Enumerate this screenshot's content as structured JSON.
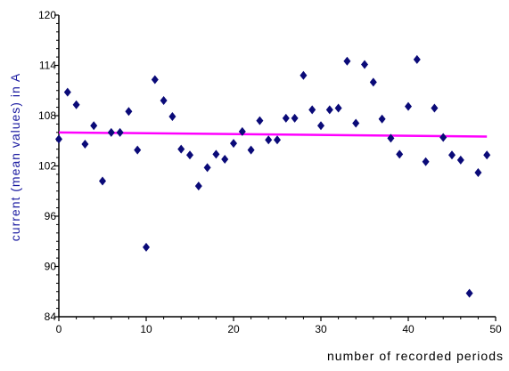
{
  "chart_data": {
    "type": "scatter",
    "title": "",
    "xlabel": "number of recorded periods",
    "ylabel": "current (mean values) in A",
    "xlim": [
      0,
      50
    ],
    "ylim": [
      84,
      120
    ],
    "x_ticks": [
      0,
      10,
      20,
      30,
      40,
      50
    ],
    "y_ticks": [
      84,
      90,
      96,
      102,
      108,
      114,
      120
    ],
    "grid": false,
    "legend": "none",
    "colors": {
      "points": "#0a0a78",
      "trend": "#ff00ff",
      "ylabel": "#1a1aa0"
    },
    "series": [
      {
        "type": "scatter",
        "marker": "diamond",
        "x": [
          0,
          1,
          2,
          3,
          4,
          5,
          6,
          7,
          8,
          9,
          10,
          11,
          12,
          13,
          14,
          15,
          16,
          17,
          18,
          19,
          20,
          21,
          22,
          23,
          24,
          25,
          26,
          27,
          28,
          29,
          30,
          31,
          32,
          33,
          34,
          35,
          36,
          37,
          38,
          39,
          40,
          41,
          42,
          43,
          44,
          45,
          46,
          47,
          48,
          49
        ],
        "y": [
          105.2,
          110.8,
          109.3,
          104.6,
          106.8,
          100.2,
          106.0,
          106.0,
          108.5,
          103.9,
          92.3,
          112.3,
          109.8,
          107.9,
          104.0,
          103.3,
          99.6,
          101.8,
          103.4,
          102.8,
          104.7,
          106.1,
          103.9,
          107.4,
          105.1,
          105.1,
          107.7,
          107.7,
          112.8,
          108.7,
          106.8,
          108.7,
          108.9,
          114.5,
          107.1,
          114.1,
          112.0,
          107.6,
          105.3,
          103.4,
          109.1,
          114.7,
          102.5,
          108.9,
          105.4,
          103.3,
          102.7,
          86.8,
          101.2,
          103.3
        ]
      },
      {
        "type": "line",
        "x": [
          0,
          49
        ],
        "y": [
          106.0,
          105.5
        ]
      }
    ]
  }
}
